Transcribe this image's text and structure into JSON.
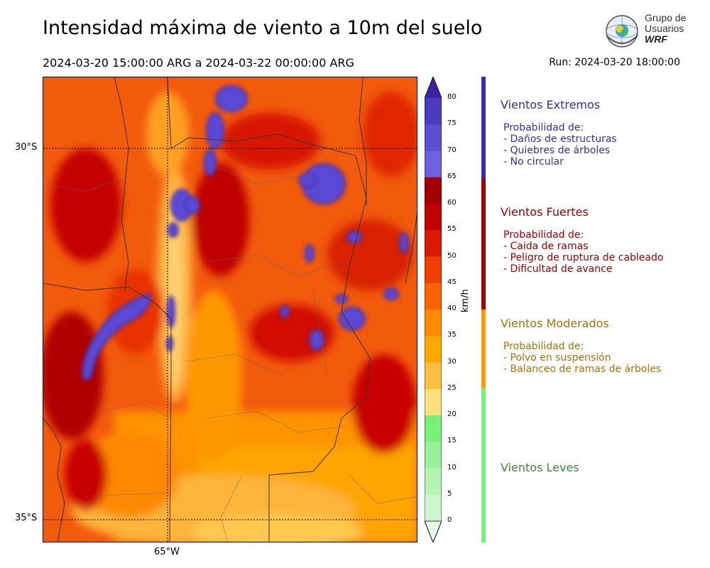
{
  "header": {
    "title": "Intensidad máxima de viento a 10m del suelo",
    "period": "2024-03-20 15:00:00 ARG  a  2024-03-22 00:00:00 ARG",
    "run": "Run: 2024-03-20 18:00:00"
  },
  "logo": {
    "line1": "Grupo de",
    "line2": "Usuarios",
    "line3": "WRF"
  },
  "map": {
    "lat_labels": [
      "30°S",
      "35°S"
    ],
    "lon_labels": [
      "65°W"
    ]
  },
  "colorbar": {
    "unit": "km/h",
    "ticks": [
      "80",
      "75",
      "70",
      "65",
      "60",
      "55",
      "50",
      "45",
      "40",
      "35",
      "30",
      "25",
      "20",
      "15",
      "10",
      "5",
      "0"
    ],
    "colors": [
      "#3d23a3",
      "#4b3bc0",
      "#5a50d6",
      "#7060e0",
      "#a50000",
      "#c00000",
      "#dc1a00",
      "#f03e00",
      "#fa6400",
      "#ff8c00",
      "#ffa800",
      "#ffbf40",
      "#ffe080",
      "#78f078",
      "#98f098",
      "#b4f4b4",
      "#cdf6cd",
      "#e6fae6"
    ]
  },
  "categories": [
    {
      "title": "Vientos Extremos",
      "color": "#3b2ba8",
      "lines": [
        "Probabilidad de:",
        "- Daños de estructuras",
        "- Quiebres de árboles",
        "- No circular"
      ]
    },
    {
      "title": "Vientos Fuertes",
      "color": "#a00000",
      "lines": [
        "Probabilidad de:",
        "- Caida de ramas",
        "- Peligro de ruptura de cableado",
        "- Dificultad de avance"
      ]
    },
    {
      "title": "Vientos Moderados",
      "color": "#a8700a",
      "lines": [
        "Probabilidad de:",
        "- Polvo en suspensión",
        "- Balanceo de ramas de árboles"
      ]
    },
    {
      "title": "Vientos Leves",
      "color": "#3c8a3c",
      "lines": []
    }
  ],
  "category_bar_colors": [
    "#3b2ba8",
    "#a00000",
    "#ff9900",
    "#78f078"
  ]
}
